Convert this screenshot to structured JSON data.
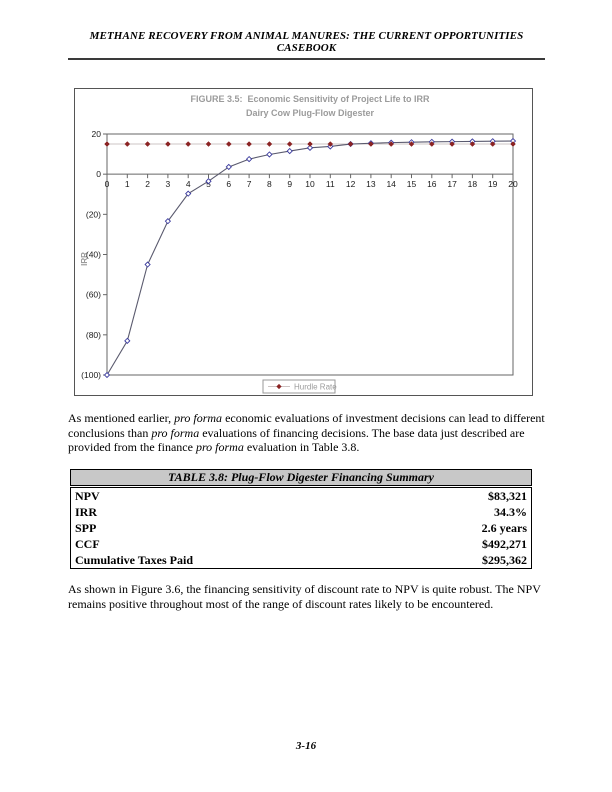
{
  "page": {
    "header": "METHANE RECOVERY FROM ANIMAL MANURES: THE CURRENT OPPORTUNITIES CASEBOOK",
    "page_number": "3-16"
  },
  "chart_data": {
    "type": "line",
    "title": "FIGURE 3.5:  Economic Sensitivity of Project Life to IRR",
    "subtitle": "Dairy Cow Plug-Flow Digester",
    "ylabel": "IRR",
    "xlabel": "",
    "xlim": [
      0,
      20
    ],
    "ylim": [
      -100,
      20
    ],
    "grid": false,
    "x": [
      0,
      1,
      2,
      3,
      4,
      5,
      6,
      7,
      8,
      9,
      10,
      11,
      12,
      13,
      14,
      15,
      16,
      17,
      18,
      19,
      20
    ],
    "y_ticks": [
      20,
      0,
      -20,
      -40,
      -60,
      -80,
      -100
    ],
    "y_tick_labels": [
      "20",
      "0",
      "(20)",
      "(40)",
      "(60)",
      "(80)",
      "(100)"
    ],
    "legend": {
      "position": "bottom-center",
      "label": "Hurdle Rate"
    },
    "series": [
      {
        "name": "IRR",
        "color": "#5a5a6e",
        "marker": "open-diamond",
        "marker_color": "#3a3a9e",
        "values": [
          -100,
          -83,
          -45,
          -23.4,
          -9.7,
          -3.5,
          3.6,
          7.5,
          9.8,
          11.5,
          13.1,
          13.8,
          15.0,
          15.4,
          15.7,
          15.9,
          16.1,
          16.2,
          16.3,
          16.4,
          16.5
        ]
      },
      {
        "name": "Hurdle Rate",
        "color": "#ccc4c4",
        "marker": "filled-diamond",
        "marker_color": "#8b2323",
        "values": [
          15,
          15,
          15,
          15,
          15,
          15,
          15,
          15,
          15,
          15,
          15,
          15,
          15,
          15,
          15,
          15,
          15,
          15,
          15,
          15,
          15
        ]
      }
    ]
  },
  "paragraph1": {
    "s0": "As mentioned earlier, ",
    "i0": "pro forma",
    "s1": " economic evaluations of investment decisions can lead to different conclusions than ",
    "i1": "pro forma",
    "s2": " evaluations of financing decisions. The base data just described are provided from the finance ",
    "i2": "pro forma",
    "s3": " evaluation in Table 3.8."
  },
  "table": {
    "title": "TABLE 3.8: Plug-Flow Digester Financing Summary",
    "rows": [
      {
        "label": "NPV",
        "value": "$83,321"
      },
      {
        "label": "IRR",
        "value": "34.3%"
      },
      {
        "label": "SPP",
        "value": "2.6 years"
      },
      {
        "label": "CCF",
        "value": "$492,271"
      },
      {
        "label": "Cumulative Taxes Paid",
        "value": "$295,362"
      }
    ]
  },
  "paragraph2": {
    "text": "As shown in Figure 3.6, the financing sensitivity of discount rate to NPV is quite robust. The NPV remains positive throughout most of the range of discount rates likely to be encountered."
  }
}
